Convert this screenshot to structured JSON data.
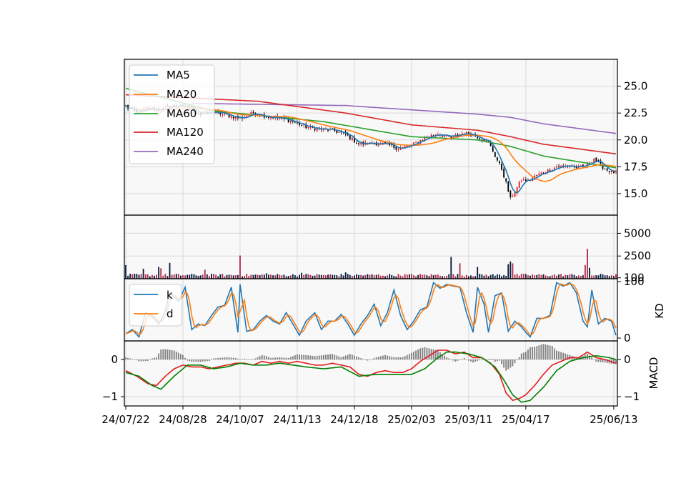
{
  "chart_data": {
    "type": "line",
    "colors": {
      "ma5": "#1f77b4",
      "ma20": "#ff7f0e",
      "ma60": "#2ca02c",
      "ma120": "#d62728",
      "ma240": "#9467bd",
      "k": "#1f77b4",
      "d": "#ff7f0e",
      "dif": "#e31a1c",
      "dea": "#008000",
      "hist": "#808080",
      "candle_up": "#e31a1c",
      "candle_down": "#000000",
      "panel_bg": "#f8f8f8",
      "grid": "#d9d9d9"
    },
    "x_ticks": [
      {
        "label": "24/07/22",
        "i": 0
      },
      {
        "label": "24/08/28",
        "i": 26
      },
      {
        "label": "24/10/07",
        "i": 52
      },
      {
        "label": "24/11/13",
        "i": 78
      },
      {
        "label": "24/12/18",
        "i": 104
      },
      {
        "label": "25/02/03",
        "i": 130
      },
      {
        "label": "25/03/11",
        "i": 156
      },
      {
        "label": "25/04/17",
        "i": 182
      },
      {
        "label": "25/06/13",
        "i": 222
      }
    ],
    "n_days": 224,
    "price_panel": {
      "ylim": [
        13.0,
        27.5
      ],
      "yticks": [
        "15.0",
        "17.5",
        "20.0",
        "22.5",
        "25.0"
      ],
      "legend": [
        "MA5",
        "MA20",
        "MA60",
        "MA120",
        "MA240"
      ],
      "legend_position": "upper-left",
      "close_anchors": [
        [
          0,
          23.1
        ],
        [
          5,
          22.5
        ],
        [
          10,
          22.9
        ],
        [
          16,
          22.8
        ],
        [
          22,
          23.2
        ],
        [
          28,
          23.1
        ],
        [
          34,
          22.4
        ],
        [
          40,
          22.6
        ],
        [
          46,
          22.3
        ],
        [
          52,
          22.0
        ],
        [
          58,
          22.5
        ],
        [
          64,
          22.2
        ],
        [
          70,
          22.0
        ],
        [
          76,
          21.7
        ],
        [
          82,
          21.2
        ],
        [
          88,
          21.0
        ],
        [
          94,
          20.9
        ],
        [
          100,
          20.5
        ],
        [
          106,
          19.6
        ],
        [
          112,
          19.7
        ],
        [
          118,
          19.6
        ],
        [
          124,
          19.2
        ],
        [
          130,
          19.5
        ],
        [
          136,
          20.2
        ],
        [
          142,
          20.6
        ],
        [
          148,
          20.2
        ],
        [
          154,
          20.7
        ],
        [
          160,
          20.3
        ],
        [
          165,
          19.8
        ],
        [
          168,
          18.5
        ],
        [
          171,
          17.3
        ],
        [
          173,
          16.0
        ],
        [
          175,
          14.5
        ],
        [
          177,
          15.2
        ],
        [
          180,
          16.3
        ],
        [
          183,
          16.2
        ],
        [
          186,
          16.6
        ],
        [
          190,
          17.0
        ],
        [
          196,
          17.5
        ],
        [
          202,
          17.6
        ],
        [
          206,
          17.4
        ],
        [
          210,
          17.7
        ],
        [
          213,
          18.3
        ],
        [
          216,
          17.6
        ],
        [
          219,
          17.2
        ],
        [
          223,
          16.9
        ]
      ],
      "ma60_anchors": [
        [
          0,
          24.8
        ],
        [
          40,
          22.7
        ],
        [
          90,
          21.7
        ],
        [
          130,
          20.3
        ],
        [
          160,
          20.0
        ],
        [
          175,
          19.4
        ],
        [
          190,
          18.5
        ],
        [
          223,
          17.4
        ]
      ],
      "ma120_anchors": [
        [
          0,
          24.2
        ],
        [
          60,
          23.6
        ],
        [
          100,
          22.5
        ],
        [
          130,
          21.4
        ],
        [
          160,
          20.9
        ],
        [
          175,
          20.3
        ],
        [
          190,
          19.6
        ],
        [
          223,
          18.7
        ]
      ],
      "ma240_anchors": [
        [
          30,
          23.4
        ],
        [
          100,
          23.2
        ],
        [
          130,
          22.8
        ],
        [
          160,
          22.4
        ],
        [
          175,
          22.1
        ],
        [
          190,
          21.5
        ],
        [
          223,
          20.6
        ]
      ]
    },
    "volume_panel": {
      "ylim": [
        0,
        7000
      ],
      "yticks": [
        "100",
        "2500",
        "5000"
      ],
      "spikes": [
        [
          0,
          1500
        ],
        [
          8,
          1100
        ],
        [
          15,
          1300
        ],
        [
          16,
          1150
        ],
        [
          20,
          1750
        ],
        [
          36,
          1000
        ],
        [
          52,
          2550
        ],
        [
          64,
          600
        ],
        [
          80,
          650
        ],
        [
          100,
          700
        ],
        [
          148,
          2400
        ],
        [
          152,
          1700
        ],
        [
          160,
          1300
        ],
        [
          174,
          1600
        ],
        [
          175,
          1900
        ],
        [
          176,
          1700
        ],
        [
          209,
          1500
        ],
        [
          210,
          3300
        ],
        [
          211,
          1200
        ]
      ]
    },
    "kd_panel": {
      "ylim": [
        -5,
        105
      ],
      "yticks": [
        "0",
        "100"
      ],
      "ylabel": "KD",
      "legend": [
        "k",
        "d"
      ],
      "legend_position": "upper-left",
      "k_anchors": [
        [
          0,
          8
        ],
        [
          3,
          15
        ],
        [
          6,
          2
        ],
        [
          9,
          45
        ],
        [
          12,
          38
        ],
        [
          15,
          25
        ],
        [
          18,
          48
        ],
        [
          20,
          80
        ],
        [
          24,
          65
        ],
        [
          27,
          90
        ],
        [
          30,
          15
        ],
        [
          33,
          25
        ],
        [
          36,
          22
        ],
        [
          39,
          40
        ],
        [
          42,
          55
        ],
        [
          45,
          58
        ],
        [
          48,
          90
        ],
        [
          51,
          10
        ],
        [
          52,
          95
        ],
        [
          55,
          12
        ],
        [
          58,
          15
        ],
        [
          61,
          30
        ],
        [
          64,
          40
        ],
        [
          67,
          30
        ],
        [
          70,
          25
        ],
        [
          73,
          45
        ],
        [
          76,
          25
        ],
        [
          79,
          5
        ],
        [
          82,
          30
        ],
        [
          86,
          45
        ],
        [
          89,
          15
        ],
        [
          92,
          30
        ],
        [
          95,
          30
        ],
        [
          98,
          42
        ],
        [
          101,
          25
        ],
        [
          104,
          5
        ],
        [
          107,
          25
        ],
        [
          110,
          40
        ],
        [
          113,
          60
        ],
        [
          116,
          22
        ],
        [
          119,
          45
        ],
        [
          122,
          85
        ],
        [
          125,
          40
        ],
        [
          128,
          15
        ],
        [
          131,
          30
        ],
        [
          134,
          50
        ],
        [
          137,
          55
        ],
        [
          140,
          98
        ],
        [
          143,
          88
        ],
        [
          146,
          95
        ],
        [
          149,
          92
        ],
        [
          152,
          90
        ],
        [
          155,
          45
        ],
        [
          158,
          10
        ],
        [
          160,
          90
        ],
        [
          163,
          60
        ],
        [
          165,
          10
        ],
        [
          168,
          75
        ],
        [
          171,
          80
        ],
        [
          174,
          12
        ],
        [
          177,
          30
        ],
        [
          180,
          20
        ],
        [
          182,
          10
        ],
        [
          184,
          2
        ],
        [
          187,
          35
        ],
        [
          190,
          35
        ],
        [
          193,
          40
        ],
        [
          196,
          98
        ],
        [
          199,
          92
        ],
        [
          202,
          98
        ],
        [
          205,
          80
        ],
        [
          208,
          30
        ],
        [
          210,
          20
        ],
        [
          212,
          85
        ],
        [
          215,
          25
        ],
        [
          218,
          35
        ],
        [
          221,
          30
        ],
        [
          223,
          5
        ]
      ]
    },
    "macd_panel": {
      "ylim": [
        -1.25,
        0.5
      ],
      "yticks": [
        "0",
        "-1"
      ],
      "ylabel": "MACD",
      "dif_anchors": [
        [
          0,
          -0.3
        ],
        [
          5,
          -0.45
        ],
        [
          10,
          -0.65
        ],
        [
          14,
          -0.7
        ],
        [
          18,
          -0.45
        ],
        [
          22,
          -0.25
        ],
        [
          26,
          -0.15
        ],
        [
          30,
          -0.2
        ],
        [
          34,
          -0.2
        ],
        [
          38,
          -0.25
        ],
        [
          42,
          -0.2
        ],
        [
          46,
          -0.15
        ],
        [
          50,
          -0.1
        ],
        [
          54,
          -0.1
        ],
        [
          58,
          -0.15
        ],
        [
          62,
          -0.05
        ],
        [
          66,
          -0.1
        ],
        [
          70,
          -0.05
        ],
        [
          74,
          -0.1
        ],
        [
          78,
          -0.05
        ],
        [
          82,
          -0.1
        ],
        [
          86,
          -0.15
        ],
        [
          90,
          -0.15
        ],
        [
          94,
          -0.1
        ],
        [
          98,
          -0.15
        ],
        [
          102,
          -0.2
        ],
        [
          106,
          -0.4
        ],
        [
          110,
          -0.45
        ],
        [
          114,
          -0.35
        ],
        [
          118,
          -0.3
        ],
        [
          122,
          -0.35
        ],
        [
          126,
          -0.35
        ],
        [
          130,
          -0.25
        ],
        [
          134,
          -0.05
        ],
        [
          138,
          0.1
        ],
        [
          142,
          0.25
        ],
        [
          146,
          0.25
        ],
        [
          150,
          0.15
        ],
        [
          154,
          0.2
        ],
        [
          158,
          0.05
        ],
        [
          162,
          0.05
        ],
        [
          166,
          -0.1
        ],
        [
          170,
          -0.4
        ],
        [
          173,
          -0.9
        ],
        [
          176,
          -1.1
        ],
        [
          179,
          -1.05
        ],
        [
          182,
          -0.95
        ],
        [
          186,
          -0.7
        ],
        [
          190,
          -0.4
        ],
        [
          194,
          -0.15
        ],
        [
          198,
          -0.05
        ],
        [
          202,
          0.05
        ],
        [
          206,
          0.05
        ],
        [
          210,
          0.2
        ],
        [
          214,
          0.05
        ],
        [
          218,
          0.0
        ],
        [
          223,
          -0.1
        ]
      ],
      "dea_anchors": [
        [
          0,
          -0.35
        ],
        [
          6,
          -0.45
        ],
        [
          12,
          -0.7
        ],
        [
          16,
          -0.8
        ],
        [
          22,
          -0.45
        ],
        [
          28,
          -0.15
        ],
        [
          34,
          -0.15
        ],
        [
          40,
          -0.25
        ],
        [
          46,
          -0.2
        ],
        [
          52,
          -0.1
        ],
        [
          58,
          -0.15
        ],
        [
          64,
          -0.15
        ],
        [
          70,
          -0.1
        ],
        [
          76,
          -0.15
        ],
        [
          82,
          -0.2
        ],
        [
          90,
          -0.25
        ],
        [
          98,
          -0.2
        ],
        [
          106,
          -0.45
        ],
        [
          114,
          -0.4
        ],
        [
          122,
          -0.4
        ],
        [
          130,
          -0.4
        ],
        [
          136,
          -0.25
        ],
        [
          142,
          0.05
        ],
        [
          146,
          0.2
        ],
        [
          150,
          0.2
        ],
        [
          156,
          0.15
        ],
        [
          162,
          0.05
        ],
        [
          168,
          -0.2
        ],
        [
          172,
          -0.55
        ],
        [
          176,
          -0.95
        ],
        [
          180,
          -1.15
        ],
        [
          184,
          -1.1
        ],
        [
          190,
          -0.75
        ],
        [
          196,
          -0.3
        ],
        [
          202,
          -0.05
        ],
        [
          208,
          0.05
        ],
        [
          214,
          0.1
        ],
        [
          220,
          0.05
        ],
        [
          223,
          0.0
        ]
      ]
    }
  }
}
